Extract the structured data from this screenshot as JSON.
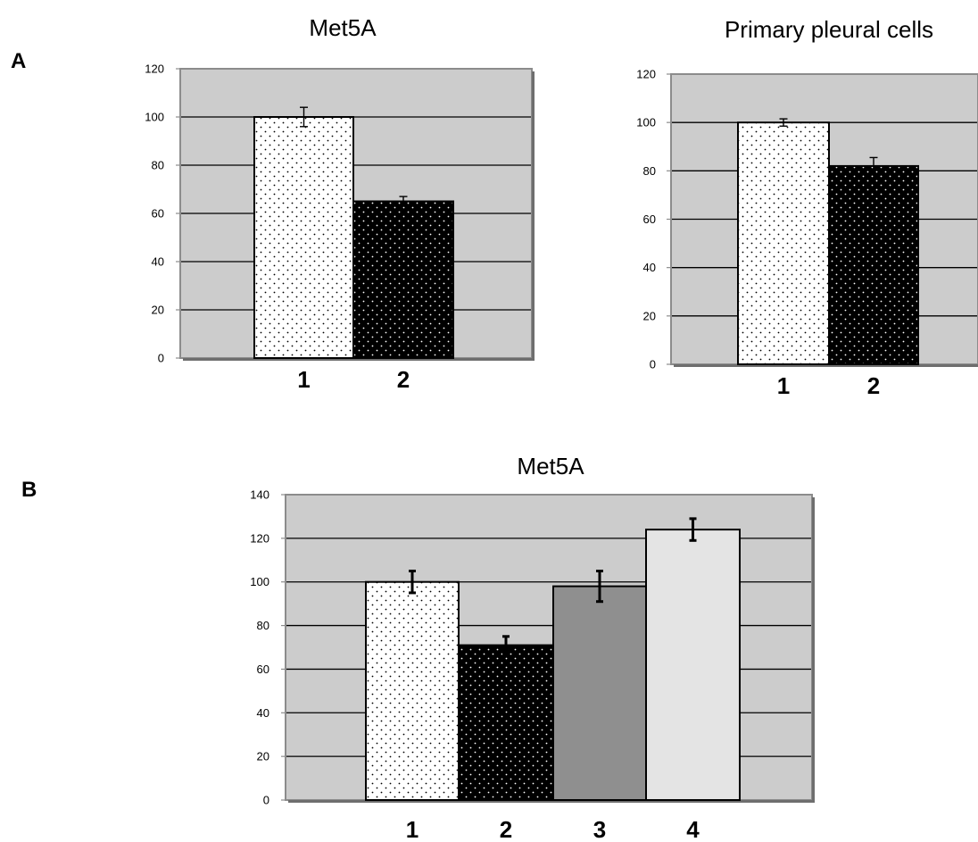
{
  "figure": {
    "panel_letters": [
      "A",
      "B"
    ]
  },
  "colors": {
    "plot_background": "#cccccc",
    "plot_frame": "#8c8c8c",
    "gridline": "#000000",
    "bar_dotted_white": "#ffffff",
    "bar_dotted_black": "#000000",
    "bar_dark_gray": "#8f8f8f",
    "bar_light_gray": "#e4e4e4"
  },
  "chart_data": [
    {
      "panel": "A",
      "type": "bar",
      "title": "Met5A",
      "categories": [
        "1",
        "2"
      ],
      "values": [
        100,
        65
      ],
      "errors": [
        4,
        2
      ],
      "bar_styles": [
        "dotted-white",
        "dotted-black"
      ],
      "ylim": [
        0,
        120
      ],
      "yticks": [
        0,
        20,
        40,
        60,
        80,
        100,
        120
      ],
      "grid": true,
      "xlabel": "",
      "ylabel": ""
    },
    {
      "panel": "A",
      "type": "bar",
      "title": "Primary pleural cells",
      "categories": [
        "1",
        "2"
      ],
      "values": [
        100,
        82
      ],
      "errors": [
        1.5,
        3.5
      ],
      "bar_styles": [
        "dotted-white",
        "dotted-black"
      ],
      "ylim": [
        0,
        120
      ],
      "yticks": [
        0,
        20,
        40,
        60,
        80,
        100,
        120
      ],
      "grid": true,
      "xlabel": "",
      "ylabel": ""
    },
    {
      "panel": "B",
      "type": "bar",
      "title": "Met5A",
      "categories": [
        "1",
        "2",
        "3",
        "4"
      ],
      "values": [
        100,
        71,
        98,
        124
      ],
      "errors": [
        5,
        4,
        7,
        5
      ],
      "bar_styles": [
        "dotted-white",
        "dotted-black",
        "solid-dark-gray",
        "solid-light-gray"
      ],
      "ylim": [
        0,
        140
      ],
      "yticks": [
        0,
        20,
        40,
        60,
        80,
        100,
        120,
        140
      ],
      "grid": true,
      "xlabel": "",
      "ylabel": ""
    }
  ]
}
